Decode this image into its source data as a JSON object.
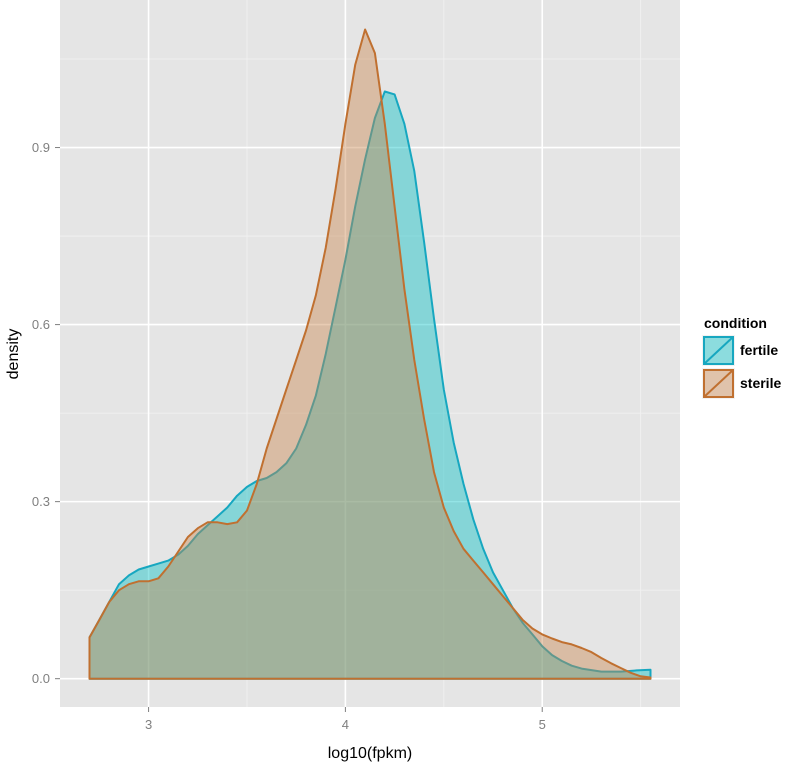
{
  "chart_data": {
    "type": "area",
    "xlabel": "log10(fpkm)",
    "ylabel": "density",
    "xlim": [
      2.55,
      5.7
    ],
    "ylim": [
      -0.048,
      1.15
    ],
    "x_ticks": [
      3,
      4,
      5
    ],
    "y_ticks": [
      0.0,
      0.3,
      0.6,
      0.9
    ],
    "x_tick_labels": [
      "3",
      "4",
      "5"
    ],
    "y_tick_labels": [
      "0.0",
      "0.3",
      "0.6",
      "0.9"
    ],
    "grid": true,
    "legend": {
      "title": "condition",
      "position": "right"
    },
    "series": [
      {
        "name": "fertile",
        "fill": "#00BFC4",
        "stroke": "#17a7c0",
        "points": [
          [
            2.7,
            0.07
          ],
          [
            2.75,
            0.1
          ],
          [
            2.8,
            0.13
          ],
          [
            2.85,
            0.16
          ],
          [
            2.9,
            0.175
          ],
          [
            2.95,
            0.185
          ],
          [
            3.0,
            0.19
          ],
          [
            3.05,
            0.195
          ],
          [
            3.1,
            0.2
          ],
          [
            3.15,
            0.21
          ],
          [
            3.2,
            0.225
          ],
          [
            3.25,
            0.245
          ],
          [
            3.3,
            0.26
          ],
          [
            3.35,
            0.275
          ],
          [
            3.4,
            0.29
          ],
          [
            3.45,
            0.31
          ],
          [
            3.5,
            0.325
          ],
          [
            3.55,
            0.335
          ],
          [
            3.6,
            0.34
          ],
          [
            3.65,
            0.35
          ],
          [
            3.7,
            0.365
          ],
          [
            3.75,
            0.39
          ],
          [
            3.8,
            0.43
          ],
          [
            3.85,
            0.48
          ],
          [
            3.9,
            0.55
          ],
          [
            3.95,
            0.63
          ],
          [
            4.0,
            0.71
          ],
          [
            4.05,
            0.8
          ],
          [
            4.1,
            0.88
          ],
          [
            4.15,
            0.95
          ],
          [
            4.2,
            0.995
          ],
          [
            4.25,
            0.99
          ],
          [
            4.3,
            0.94
          ],
          [
            4.35,
            0.86
          ],
          [
            4.4,
            0.74
          ],
          [
            4.45,
            0.61
          ],
          [
            4.5,
            0.49
          ],
          [
            4.55,
            0.4
          ],
          [
            4.6,
            0.33
          ],
          [
            4.65,
            0.27
          ],
          [
            4.7,
            0.22
          ],
          [
            4.75,
            0.18
          ],
          [
            4.8,
            0.15
          ],
          [
            4.85,
            0.12
          ],
          [
            4.9,
            0.095
          ],
          [
            4.95,
            0.075
          ],
          [
            5.0,
            0.055
          ],
          [
            5.05,
            0.04
          ],
          [
            5.1,
            0.03
          ],
          [
            5.15,
            0.022
          ],
          [
            5.2,
            0.017
          ],
          [
            5.3,
            0.012
          ],
          [
            5.4,
            0.012
          ],
          [
            5.48,
            0.014
          ],
          [
            5.55,
            0.015
          ]
        ]
      },
      {
        "name": "sterile",
        "fill": "#C8824A",
        "stroke": "#c07030",
        "points": [
          [
            2.7,
            0.07
          ],
          [
            2.75,
            0.1
          ],
          [
            2.8,
            0.13
          ],
          [
            2.85,
            0.15
          ],
          [
            2.9,
            0.16
          ],
          [
            2.95,
            0.165
          ],
          [
            3.0,
            0.165
          ],
          [
            3.05,
            0.17
          ],
          [
            3.1,
            0.19
          ],
          [
            3.15,
            0.215
          ],
          [
            3.2,
            0.24
          ],
          [
            3.25,
            0.255
          ],
          [
            3.3,
            0.265
          ],
          [
            3.35,
            0.265
          ],
          [
            3.4,
            0.262
          ],
          [
            3.45,
            0.265
          ],
          [
            3.5,
            0.285
          ],
          [
            3.55,
            0.33
          ],
          [
            3.6,
            0.39
          ],
          [
            3.65,
            0.44
          ],
          [
            3.7,
            0.49
          ],
          [
            3.75,
            0.54
          ],
          [
            3.8,
            0.59
          ],
          [
            3.85,
            0.65
          ],
          [
            3.9,
            0.73
          ],
          [
            3.95,
            0.83
          ],
          [
            4.0,
            0.94
          ],
          [
            4.05,
            1.04
          ],
          [
            4.1,
            1.1
          ],
          [
            4.15,
            1.06
          ],
          [
            4.2,
            0.94
          ],
          [
            4.25,
            0.8
          ],
          [
            4.3,
            0.66
          ],
          [
            4.35,
            0.54
          ],
          [
            4.4,
            0.44
          ],
          [
            4.45,
            0.35
          ],
          [
            4.5,
            0.29
          ],
          [
            4.55,
            0.25
          ],
          [
            4.6,
            0.22
          ],
          [
            4.65,
            0.2
          ],
          [
            4.7,
            0.18
          ],
          [
            4.75,
            0.16
          ],
          [
            4.8,
            0.14
          ],
          [
            4.85,
            0.12
          ],
          [
            4.9,
            0.1
          ],
          [
            4.95,
            0.085
          ],
          [
            5.0,
            0.075
          ],
          [
            5.05,
            0.068
          ],
          [
            5.1,
            0.062
          ],
          [
            5.15,
            0.058
          ],
          [
            5.2,
            0.052
          ],
          [
            5.25,
            0.045
          ],
          [
            5.3,
            0.035
          ],
          [
            5.35,
            0.026
          ],
          [
            5.4,
            0.018
          ],
          [
            5.45,
            0.01
          ],
          [
            5.5,
            0.004
          ],
          [
            5.55,
            0.002
          ]
        ]
      }
    ]
  }
}
